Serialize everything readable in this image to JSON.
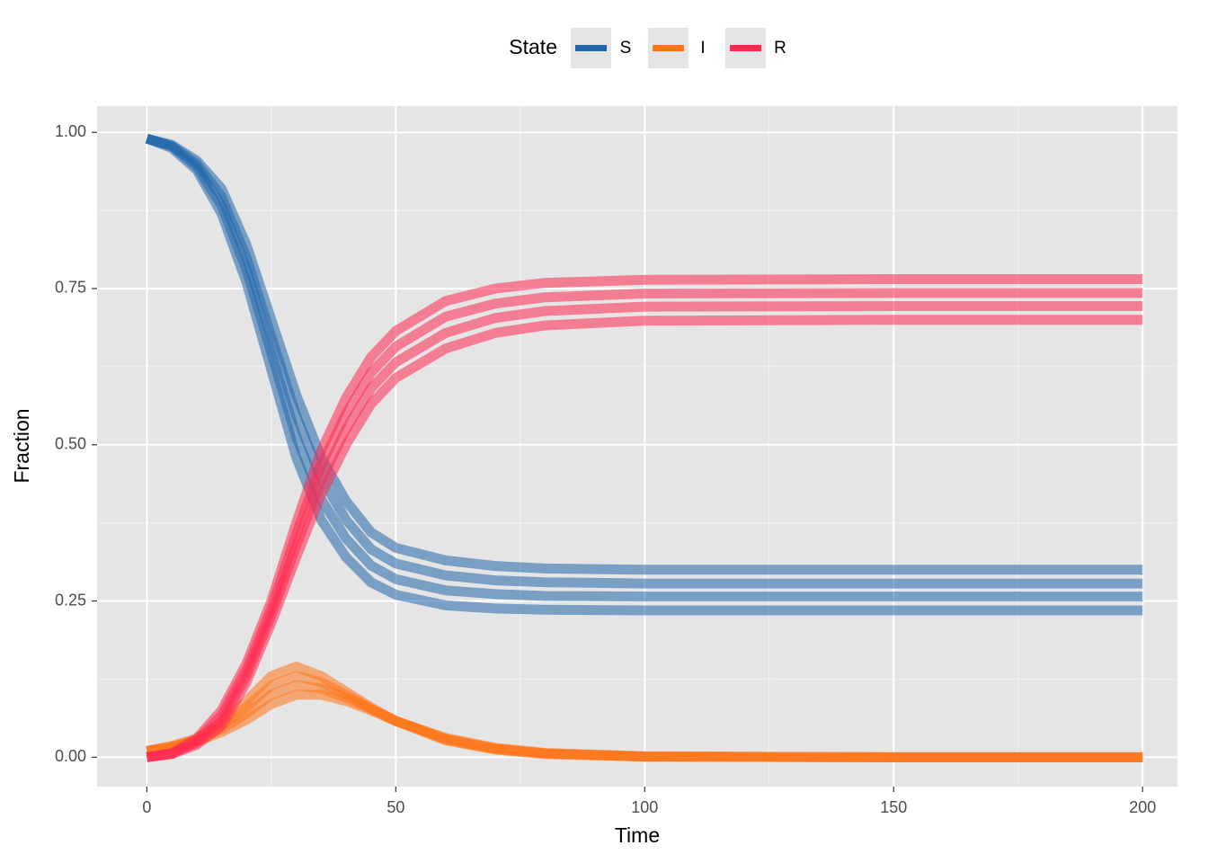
{
  "chart_data": {
    "type": "line",
    "xlabel": "Time",
    "ylabel": "Fraction",
    "legend_title": "State",
    "legend_position": "top",
    "grid": true,
    "x": [
      0,
      5,
      10,
      15,
      20,
      25,
      30,
      35,
      40,
      45,
      50,
      60,
      70,
      80,
      100,
      150,
      200
    ],
    "xlim": [
      -10,
      207
    ],
    "xticks": [
      0,
      50,
      100,
      150,
      200
    ],
    "ylim": [
      -0.047,
      1.042
    ],
    "yticks": [
      {
        "value": 0,
        "label": "0.00"
      },
      {
        "value": 0.25,
        "label": "0.25"
      },
      {
        "value": 0.5,
        "label": "0.50"
      },
      {
        "value": 0.75,
        "label": "0.75"
      },
      {
        "value": 1,
        "label": "1.00"
      }
    ],
    "series": [
      {
        "name": "S",
        "color": "#2166ac",
        "runs": [
          [
            0.99,
            0.975,
            0.94,
            0.87,
            0.76,
            0.62,
            0.48,
            0.38,
            0.32,
            0.28,
            0.26,
            0.243,
            0.238,
            0.236,
            0.235,
            0.235,
            0.235
          ],
          [
            0.99,
            0.978,
            0.945,
            0.883,
            0.78,
            0.647,
            0.513,
            0.413,
            0.35,
            0.307,
            0.285,
            0.267,
            0.261,
            0.258,
            0.257,
            0.257,
            0.257
          ],
          [
            0.99,
            0.978,
            0.95,
            0.897,
            0.8,
            0.673,
            0.547,
            0.447,
            0.38,
            0.333,
            0.31,
            0.291,
            0.283,
            0.28,
            0.278,
            0.278,
            0.278
          ],
          [
            0.99,
            0.98,
            0.955,
            0.91,
            0.82,
            0.7,
            0.58,
            0.48,
            0.41,
            0.36,
            0.335,
            0.315,
            0.306,
            0.302,
            0.3,
            0.3,
            0.3
          ]
        ]
      },
      {
        "name": "I",
        "color": "#ff7518",
        "runs": [
          [
            0.01,
            0.018,
            0.03,
            0.055,
            0.09,
            0.13,
            0.145,
            0.13,
            0.105,
            0.08,
            0.058,
            0.027,
            0.012,
            0.005,
            0.001,
            0,
            0
          ],
          [
            0.01,
            0.017,
            0.028,
            0.05,
            0.08,
            0.115,
            0.13,
            0.12,
            0.1,
            0.078,
            0.058,
            0.028,
            0.013,
            0.006,
            0.001,
            0,
            0
          ],
          [
            0.01,
            0.016,
            0.027,
            0.045,
            0.07,
            0.1,
            0.115,
            0.11,
            0.095,
            0.077,
            0.058,
            0.03,
            0.014,
            0.006,
            0.001,
            0,
            0
          ],
          [
            0.01,
            0.015,
            0.025,
            0.04,
            0.06,
            0.085,
            0.1,
            0.1,
            0.09,
            0.075,
            0.058,
            0.031,
            0.015,
            0.007,
            0.0015,
            0,
            0
          ]
        ]
      },
      {
        "name": "R",
        "color": "#ff2a50",
        "runs": [
          [
            0,
            0.007,
            0.03,
            0.075,
            0.15,
            0.25,
            0.375,
            0.49,
            0.575,
            0.64,
            0.682,
            0.73,
            0.75,
            0.759,
            0.764,
            0.765,
            0.765
          ],
          [
            0,
            0.005,
            0.027,
            0.067,
            0.14,
            0.238,
            0.357,
            0.467,
            0.55,
            0.615,
            0.657,
            0.705,
            0.726,
            0.736,
            0.742,
            0.743,
            0.743
          ],
          [
            0,
            0.006,
            0.023,
            0.058,
            0.13,
            0.227,
            0.338,
            0.443,
            0.525,
            0.59,
            0.632,
            0.679,
            0.703,
            0.714,
            0.721,
            0.722,
            0.722
          ],
          [
            0,
            0.005,
            0.02,
            0.05,
            0.12,
            0.215,
            0.32,
            0.42,
            0.5,
            0.565,
            0.607,
            0.654,
            0.679,
            0.691,
            0.6985,
            0.7,
            0.7
          ]
        ]
      }
    ]
  }
}
